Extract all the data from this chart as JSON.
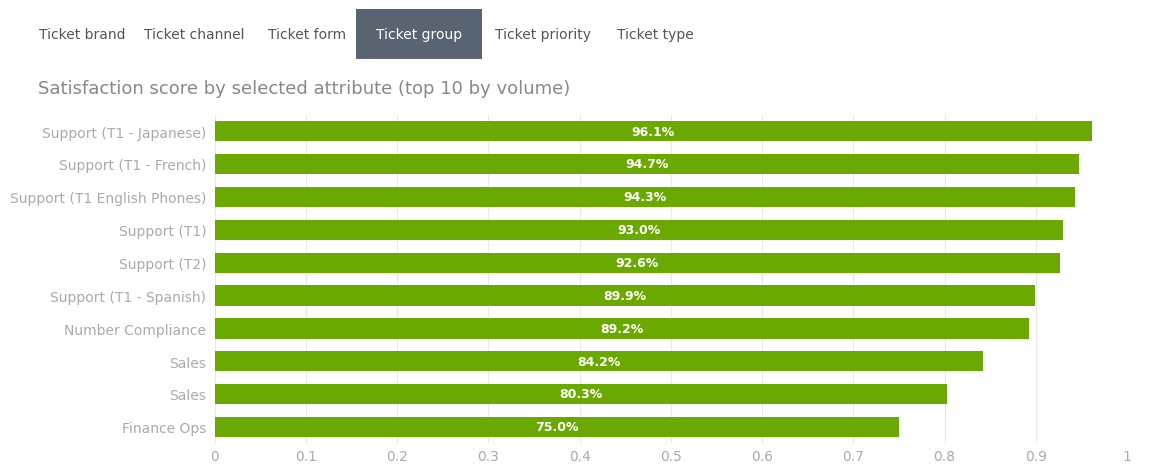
{
  "title": "Satisfaction score by selected attribute (top 10 by volume)",
  "categories": [
    "Finance Ops",
    "Sales",
    "Sales",
    "Number Compliance",
    "Support (T1 - Spanish)",
    "Support (T2)",
    "Support (T1)",
    "Support (T1 English Phones)",
    "Support (T1 - French)",
    "Support (T1 - Japanese)"
  ],
  "values": [
    0.75,
    0.803,
    0.842,
    0.892,
    0.899,
    0.926,
    0.93,
    0.943,
    0.947,
    0.961
  ],
  "labels": [
    "75.0%",
    "80.3%",
    "84.2%",
    "89.2%",
    "89.9%",
    "92.6%",
    "93.0%",
    "94.3%",
    "94.7%",
    "96.1%"
  ],
  "bar_color": "#6aaa00",
  "label_color": "#ffffff",
  "title_color": "#888888",
  "tick_color": "#aaaaaa",
  "background_color": "#ffffff",
  "header_bg": "#f0f0f0",
  "xlim": [
    0,
    1
  ],
  "xticks": [
    0,
    0.1,
    0.2,
    0.3,
    0.4,
    0.5,
    0.6,
    0.7,
    0.8,
    0.9,
    1.0
  ],
  "xtick_labels": [
    "0",
    "0.1",
    "0.2",
    "0.3",
    "0.4",
    "0.5",
    "0.6",
    "0.7",
    "0.8",
    "0.9",
    "1"
  ],
  "tab_labels": [
    "Ticket brand",
    "Ticket channel",
    "Ticket form",
    "Ticket group",
    "Ticket priority",
    "Ticket type"
  ],
  "active_tab": "Ticket group",
  "tab_bg_color": "#596473",
  "tab_active_text": "#ffffff",
  "tab_inactive_text": "#555555",
  "bar_height": 0.62,
  "label_fontsize": 9,
  "title_fontsize": 13,
  "tick_fontsize": 10,
  "category_fontsize": 10,
  "tab_fontsize": 10
}
